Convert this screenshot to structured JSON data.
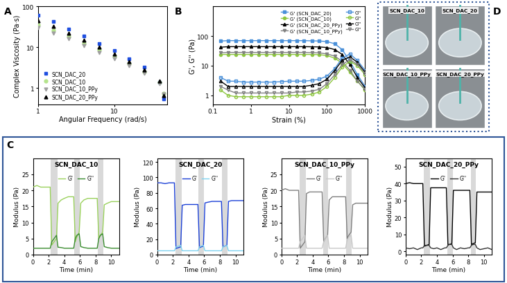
{
  "panel_labels": [
    "A",
    "B",
    "C",
    "D"
  ],
  "chart_data": [
    {
      "panel": "A",
      "type": "line",
      "log": true,
      "x_label": "Angular Frequency (rad/s)",
      "y_label": "Complex Viscosity (Pa·s)",
      "xlim": [
        1,
        50
      ],
      "xticks": [
        1,
        10
      ],
      "ylim": [
        0.4,
        100
      ],
      "yticks": [
        1,
        10,
        100
      ],
      "legend": "lower left",
      "x": [
        1,
        1.58,
        2.51,
        3.98,
        6.31,
        10,
        15.8,
        25.1,
        39.8,
        45
      ],
      "series": [
        {
          "name": "SCN_DAC_20",
          "color": "#1f4fe0",
          "marker": "square",
          "line_style": "none",
          "values": [
            60,
            42,
            28,
            19,
            12.5,
            8.2,
            5.2,
            3.2,
            1.4,
            0.55
          ]
        },
        {
          "name": "SCN_DAC_10",
          "color": "#b5e48c",
          "marker": "circle",
          "line_style": "none",
          "values": [
            35,
            26,
            18,
            12.5,
            8.5,
            5.8,
            3.9,
            2.5,
            1.4,
            0.75
          ]
        },
        {
          "name": "SCN_DAC_10_PPy",
          "color": "#a0a0a0",
          "marker": "triangle_down",
          "line_style": "none",
          "values": [
            30,
            22,
            16,
            11,
            7.5,
            5.2,
            3.5,
            2.3,
            1.3,
            0.7
          ]
        },
        {
          "name": "SCN_DAC_20_PPy",
          "color": "#000000",
          "marker": "triangle_up",
          "line_style": "none",
          "values": [
            45,
            32,
            22,
            15,
            10,
            6.8,
            4.4,
            2.8,
            1.5,
            0.65
          ]
        }
      ]
    },
    {
      "panel": "B",
      "type": "line",
      "log": true,
      "x_label": "Strain (%)",
      "y_label": "G', G'' (Pa)",
      "xlim": [
        0.1,
        1000
      ],
      "xticks": [
        0.1,
        1,
        10,
        100,
        1000
      ],
      "ylim": [
        0.5,
        1000
      ],
      "yticks": [
        1,
        10,
        100
      ],
      "legend": "upper right",
      "x": [
        0.16,
        0.25,
        0.4,
        0.63,
        1,
        1.6,
        2.5,
        4,
        6.3,
        10,
        16,
        25,
        40,
        63,
        100,
        160,
        250,
        400,
        630,
        1000
      ],
      "series": [
        {
          "name": "G' (SCN_DAC_20)",
          "color": "#4a90d9",
          "marker": "square",
          "line_style": "solid",
          "values": [
            68,
            70,
            70,
            70,
            70,
            70,
            70,
            70,
            70,
            70,
            70,
            70,
            69,
            68,
            65,
            55,
            35,
            14,
            5,
            2
          ]
        },
        {
          "name": "G' (SCN_DAC_10)",
          "color": "#8dc63f",
          "marker": "circle",
          "line_style": "solid",
          "values": [
            24,
            24,
            24,
            24,
            24,
            24,
            24,
            24,
            24,
            24,
            24,
            24,
            24,
            23.5,
            22,
            18,
            12,
            6,
            3,
            1.5
          ]
        },
        {
          "name": "G' (SCN_DAC_20_PPy)",
          "color": "#000000",
          "marker": "triangle_up",
          "line_style": "solid",
          "values": [
            42,
            44,
            44,
            44,
            44,
            44,
            44,
            44,
            44,
            44,
            44,
            44,
            43.5,
            43,
            41,
            35,
            24,
            11,
            4,
            1.8
          ]
        },
        {
          "name": "G' (SCN_DAC_10_PPy)",
          "color": "#808080",
          "marker": "triangle_down",
          "line_style": "solid",
          "values": [
            27,
            28,
            28,
            28,
            28,
            28,
            28,
            28,
            28,
            28,
            28,
            28,
            27.5,
            27,
            25,
            21,
            14,
            7,
            3,
            1.6
          ]
        },
        {
          "name": "G''",
          "color": "#4a90d9",
          "marker": "open_square",
          "line_style": "solid",
          "values": [
            4,
            3,
            3,
            2.8,
            2.8,
            2.8,
            2.8,
            2.8,
            2.9,
            3,
            3,
            3,
            3.2,
            3.5,
            4.5,
            8,
            18,
            25,
            15,
            7
          ]
        },
        {
          "name": "G''",
          "color": "#8dc63f",
          "marker": "open_circle",
          "line_style": "solid",
          "values": [
            1.5,
            1,
            0.9,
            0.9,
            0.9,
            0.9,
            0.9,
            0.9,
            0.9,
            1,
            1,
            1,
            1.1,
            1.3,
            2,
            4,
            9,
            14,
            10,
            5
          ]
        },
        {
          "name": "G''",
          "color": "#000000",
          "marker": "open_triangle_up",
          "line_style": "solid",
          "values": [
            3,
            2,
            2,
            2,
            2,
            2,
            2,
            2,
            2,
            2,
            2,
            2,
            2.2,
            2.5,
            3.5,
            7,
            15,
            20,
            13,
            6
          ]
        },
        {
          "name": "G''",
          "color": "#808080",
          "marker": "open_triangle_down",
          "line_style": "solid",
          "values": [
            2,
            1.5,
            1.2,
            1.2,
            1.2,
            1.2,
            1.2,
            1.2,
            1.2,
            1.2,
            1.3,
            1.3,
            1.4,
            1.6,
            2.5,
            5,
            11,
            16,
            11,
            5.5
          ]
        }
      ]
    },
    {
      "panel": "C",
      "type": "line",
      "title": "SCN_DAC_10",
      "x_label": "Time (min)",
      "y_label": "Modulus (Pa)",
      "xlim": [
        0,
        11
      ],
      "xticks": [
        0,
        2,
        4,
        6,
        8,
        10
      ],
      "ylim": [
        0,
        30
      ],
      "yticks": [
        0,
        5,
        10,
        15,
        20,
        25
      ],
      "legend": "upper center",
      "shaded_intervals": [
        [
          2.3,
          3.1
        ],
        [
          5.3,
          6.0
        ],
        [
          8.3,
          9.0
        ]
      ],
      "x": [
        0,
        0.5,
        1,
        1.5,
        2,
        2.2,
        2.4,
        2.7,
        3.0,
        3.2,
        3.6,
        4,
        4.5,
        5,
        5.2,
        5.4,
        5.6,
        5.9,
        6.1,
        6.5,
        7,
        7.5,
        8,
        8.2,
        8.4,
        8.6,
        8.9,
        9.1,
        9.5,
        10,
        10.5,
        11
      ],
      "series": [
        {
          "name": "G'",
          "color": "#9ad15c",
          "line_style": "solid",
          "values": [
            21,
            21.5,
            21,
            21,
            21,
            21,
            3,
            4,
            5,
            16,
            17,
            17.5,
            18,
            18,
            18,
            4,
            5.5,
            7,
            16,
            17,
            17.5,
            17.5,
            17.5,
            17.5,
            5,
            6,
            7,
            15.5,
            16,
            16.5,
            16.5,
            16.5
          ]
        },
        {
          "name": "G''",
          "color": "#3a8c2f",
          "line_style": "solid",
          "values": [
            2,
            2,
            2,
            2,
            2,
            2,
            4,
            5,
            6,
            2.3,
            2.2,
            2,
            2,
            2,
            2,
            5,
            6,
            6.5,
            2.5,
            2.2,
            2,
            2,
            2,
            2,
            5,
            6,
            6.5,
            2.5,
            2.2,
            2,
            2,
            2
          ]
        }
      ]
    },
    {
      "panel": "C",
      "type": "line",
      "title": "SCN_DAC_20",
      "x_label": "Time (min)",
      "y_label": "Modulus (Pa)",
      "xlim": [
        0,
        11
      ],
      "xticks": [
        0,
        2,
        4,
        6,
        8,
        10
      ],
      "ylim": [
        0,
        125
      ],
      "yticks": [
        0,
        20,
        40,
        60,
        80,
        100,
        120
      ],
      "legend": "upper center",
      "shaded_intervals": [
        [
          2.3,
          3.1
        ],
        [
          5.3,
          6.0
        ],
        [
          8.3,
          9.0
        ]
      ],
      "x": [
        0,
        0.5,
        1,
        1.5,
        2,
        2.2,
        2.4,
        2.7,
        3.0,
        3.2,
        3.6,
        4,
        4.5,
        5,
        5.2,
        5.4,
        5.6,
        5.9,
        6.1,
        6.5,
        7,
        7.5,
        8,
        8.2,
        8.4,
        8.6,
        8.9,
        9.1,
        9.5,
        10,
        10.5,
        11
      ],
      "series": [
        {
          "name": "G'",
          "color": "#1a3fd6",
          "line_style": "solid",
          "values": [
            93,
            93,
            92,
            93,
            93,
            93,
            8,
            9,
            10,
            64,
            65,
            65,
            65,
            65,
            65,
            9,
            10,
            11,
            67,
            68,
            69,
            69,
            69,
            69,
            10,
            11,
            12,
            69,
            70,
            70,
            70,
            70
          ]
        },
        {
          "name": "G''",
          "color": "#7fd3f0",
          "line_style": "solid",
          "values": [
            5,
            5,
            5,
            5,
            5,
            5,
            10,
            11,
            12,
            5,
            5,
            5,
            5,
            5,
            5,
            10,
            11,
            12,
            5,
            5,
            5,
            5,
            5,
            5,
            10,
            11,
            12,
            5,
            5,
            5,
            5,
            5
          ]
        }
      ]
    },
    {
      "panel": "C",
      "type": "line",
      "title": "SCN_DAC_10_PPy",
      "x_label": "Time (min)",
      "y_label": "Modulus (Pa)",
      "xlim": [
        0,
        11
      ],
      "xticks": [
        0,
        2,
        4,
        6,
        8,
        10
      ],
      "ylim": [
        0,
        30
      ],
      "yticks": [
        0,
        5,
        10,
        15,
        20,
        25
      ],
      "legend": "upper center",
      "shaded_intervals": [
        [
          2.3,
          3.1
        ],
        [
          5.3,
          6.0
        ],
        [
          8.3,
          9.0
        ]
      ],
      "x": [
        0,
        0.5,
        1,
        1.5,
        2,
        2.2,
        2.4,
        2.7,
        3.0,
        3.2,
        3.6,
        4,
        4.5,
        5,
        5.2,
        5.4,
        5.6,
        5.9,
        6.1,
        6.5,
        7,
        7.5,
        8,
        8.2,
        8.4,
        8.6,
        8.9,
        9.1,
        9.5,
        10,
        10.5,
        11
      ],
      "series": [
        {
          "name": "G'",
          "color": "#7f7f7f",
          "line_style": "solid",
          "values": [
            20,
            20.5,
            20,
            20,
            20,
            20,
            2,
            3,
            4,
            19,
            19.5,
            19.5,
            19.5,
            19.5,
            19.5,
            4,
            5,
            6,
            17,
            18,
            18,
            18,
            18,
            18,
            5,
            6,
            7,
            15.5,
            16,
            16,
            16,
            16
          ]
        },
        {
          "name": "G''",
          "color": "#c8c8c8",
          "line_style": "solid",
          "values": [
            2,
            2,
            2,
            2,
            2,
            2,
            4,
            5,
            6,
            2,
            2,
            2,
            2,
            2,
            2,
            4,
            5,
            6,
            2,
            2,
            2,
            2,
            2,
            2,
            4.5,
            5.5,
            6,
            2,
            2,
            2,
            2,
            2
          ]
        }
      ]
    },
    {
      "panel": "C",
      "type": "line",
      "title": "SCN_DAC_20_PPy",
      "x_label": "Time (min)",
      "y_label": "Modulus (Pa)",
      "xlim": [
        0,
        11
      ],
      "xticks": [
        0,
        2,
        4,
        6,
        8,
        10
      ],
      "ylim": [
        -2,
        55
      ],
      "yticks": [
        0,
        10,
        20,
        30,
        40,
        50
      ],
      "legend": "upper center",
      "shaded_intervals": [
        [
          2.3,
          3.1
        ],
        [
          5.3,
          6.0
        ],
        [
          8.3,
          9.0
        ]
      ],
      "x": [
        0,
        0.5,
        1,
        1.5,
        2,
        2.2,
        2.4,
        2.7,
        3.0,
        3.2,
        3.6,
        4,
        4.5,
        5,
        5.2,
        5.4,
        5.6,
        5.9,
        6.1,
        6.5,
        7,
        7.5,
        8,
        8.2,
        8.4,
        8.6,
        8.9,
        9.1,
        9.5,
        10,
        10.5,
        11
      ],
      "series": [
        {
          "name": "G'",
          "color": "#000000",
          "line_style": "solid",
          "values": [
            40,
            40.5,
            40,
            40,
            40,
            40,
            3,
            3.5,
            4,
            37.5,
            37.5,
            37.5,
            37.5,
            37.5,
            37.5,
            4,
            4,
            4.5,
            36,
            36,
            36,
            36,
            36,
            36,
            4,
            4.5,
            5,
            35,
            35,
            35,
            35,
            35
          ]
        },
        {
          "name": "G''",
          "color": "#333333",
          "line_style": "solid",
          "values": [
            2,
            1.5,
            2,
            1,
            2,
            2,
            3.5,
            3.5,
            3.5,
            2,
            1.5,
            2,
            1,
            2,
            2,
            3.5,
            4,
            4,
            2,
            1,
            2,
            1.5,
            2,
            2,
            3.5,
            4,
            4,
            2,
            1,
            1.5,
            2,
            1
          ]
        }
      ]
    }
  ],
  "photos": {
    "labels": [
      "SCN_DAC_10",
      "SCN_DAC_20",
      "SCN_DAC_10_PPy",
      "SCN_DAC_20_PPy"
    ]
  }
}
